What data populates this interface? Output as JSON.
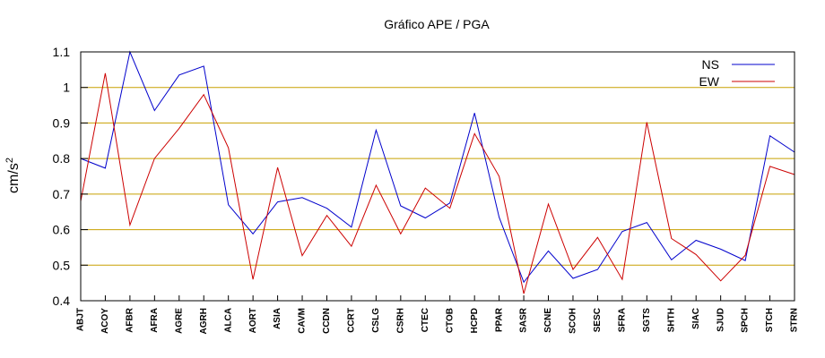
{
  "chart_data": {
    "type": "line",
    "title": "Gráfico  APE / PGA",
    "ylabel": "cm/s",
    "ylabel_exponent": "2",
    "xlabel": "",
    "ylim": [
      0.4,
      1.1
    ],
    "yticks": [
      0.4,
      0.5,
      0.6,
      0.7,
      0.8,
      0.9,
      1,
      1.1
    ],
    "ytick_labels": [
      "0.4",
      "0.5",
      "0.6",
      "0.7",
      "0.8",
      "0.9",
      "1",
      "1.1"
    ],
    "grid": "horizontal",
    "grid_color": "#c8a000",
    "legend_position": "top-right",
    "categories": [
      "ABJT",
      "ACOY",
      "AFBR",
      "AFRA",
      "AGRE",
      "AGRH",
      "ALCA",
      "AORT",
      "ASIA",
      "CAVM",
      "CCDN",
      "CCRT",
      "CSLG",
      "CSRH",
      "CTEC",
      "CTOB",
      "HCPD",
      "PPAR",
      "SASR",
      "SCNE",
      "SCOH",
      "SESC",
      "SFRA",
      "SGTS",
      "SHTH",
      "SIAC",
      "SJUD",
      "SPCH",
      "STCH",
      "STRN"
    ],
    "series": [
      {
        "name": "NS",
        "color": "#0000cc",
        "values": [
          0.8,
          0.773,
          1.1,
          0.935,
          1.035,
          1.06,
          0.67,
          0.588,
          0.678,
          0.69,
          0.66,
          0.607,
          0.88,
          0.667,
          0.633,
          0.675,
          0.928,
          0.635,
          0.452,
          0.54,
          0.463,
          0.488,
          0.595,
          0.62,
          0.515,
          0.57,
          0.545,
          0.513,
          0.864,
          0.818
        ]
      },
      {
        "name": "EW",
        "color": "#cc0000",
        "values": [
          0.68,
          1.04,
          0.613,
          0.8,
          0.885,
          0.98,
          0.83,
          0.46,
          0.775,
          0.527,
          0.64,
          0.553,
          0.725,
          0.588,
          0.717,
          0.66,
          0.87,
          0.75,
          0.42,
          0.672,
          0.488,
          0.578,
          0.46,
          0.902,
          0.575,
          0.53,
          0.456,
          0.528,
          0.778,
          0.755
        ]
      }
    ]
  }
}
